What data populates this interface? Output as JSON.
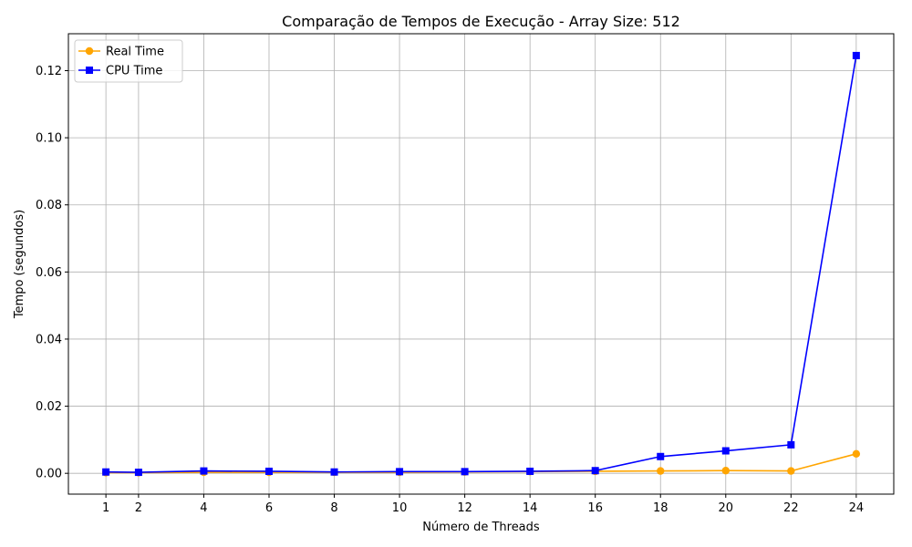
{
  "chart_data": {
    "type": "line",
    "title": "Comparação de Tempos de Execução - Array Size: 512",
    "xlabel": "Número de Threads",
    "ylabel": "Tempo (segundos)",
    "x": [
      1,
      2,
      4,
      6,
      8,
      10,
      12,
      14,
      16,
      18,
      20,
      22,
      24
    ],
    "x_ticks": [
      1,
      2,
      4,
      6,
      8,
      10,
      12,
      14,
      16,
      18,
      20,
      22,
      24
    ],
    "x_tick_labels": [
      "1",
      "2",
      "4",
      "6",
      "8",
      "10",
      "12",
      "14",
      "16",
      "18",
      "20",
      "22",
      "24"
    ],
    "xlim": [
      -0.15,
      25.15
    ],
    "ylim": [
      -0.0062,
      0.131
    ],
    "y_ticks": [
      0.0,
      0.02,
      0.04,
      0.06,
      0.08,
      0.1,
      0.12
    ],
    "y_tick_labels": [
      "0.00",
      "0.02",
      "0.04",
      "0.06",
      "0.08",
      "0.10",
      "0.12"
    ],
    "grid": true,
    "legend_position": "top-left",
    "series": [
      {
        "name": "Real Time",
        "color": "#ffa500",
        "marker": "circle",
        "values": [
          0.0002,
          0.0002,
          0.0003,
          0.0003,
          0.0003,
          0.0003,
          0.0004,
          0.0005,
          0.0006,
          0.0007,
          0.0008,
          0.0007,
          0.0058
        ]
      },
      {
        "name": "CPU Time",
        "color": "#0000ff",
        "marker": "square",
        "values": [
          0.0004,
          0.0003,
          0.0007,
          0.0006,
          0.0004,
          0.0005,
          0.0005,
          0.0006,
          0.0008,
          0.005,
          0.0067,
          0.0085,
          0.1245
        ]
      }
    ]
  }
}
